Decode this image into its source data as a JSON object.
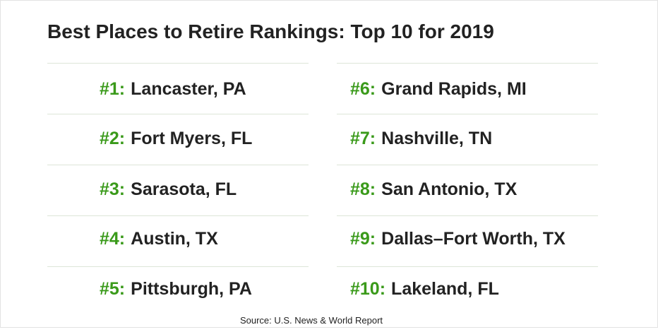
{
  "header": {
    "title": "Best Places to Retire Rankings: Top 10 for 2019"
  },
  "rankings": [
    {
      "rank": "#1:",
      "place": "Lancaster, PA"
    },
    {
      "rank": "#2:",
      "place": "Fort Myers, FL"
    },
    {
      "rank": "#3:",
      "place": "Sarasota, FL"
    },
    {
      "rank": "#4:",
      "place": "Austin, TX"
    },
    {
      "rank": "#5:",
      "place": "Pittsburgh, PA"
    },
    {
      "rank": "#6:",
      "place": "Grand Rapids, MI"
    },
    {
      "rank": "#7:",
      "place": "Nashville, TN"
    },
    {
      "rank": "#8:",
      "place": "San Antonio, TX"
    },
    {
      "rank": "#9:",
      "place": "Dallas–Fort Worth, TX"
    },
    {
      "rank": "#10:",
      "place": "Lakeland, FL"
    }
  ],
  "footer": {
    "source": "Source: U.S. News & World Report"
  }
}
